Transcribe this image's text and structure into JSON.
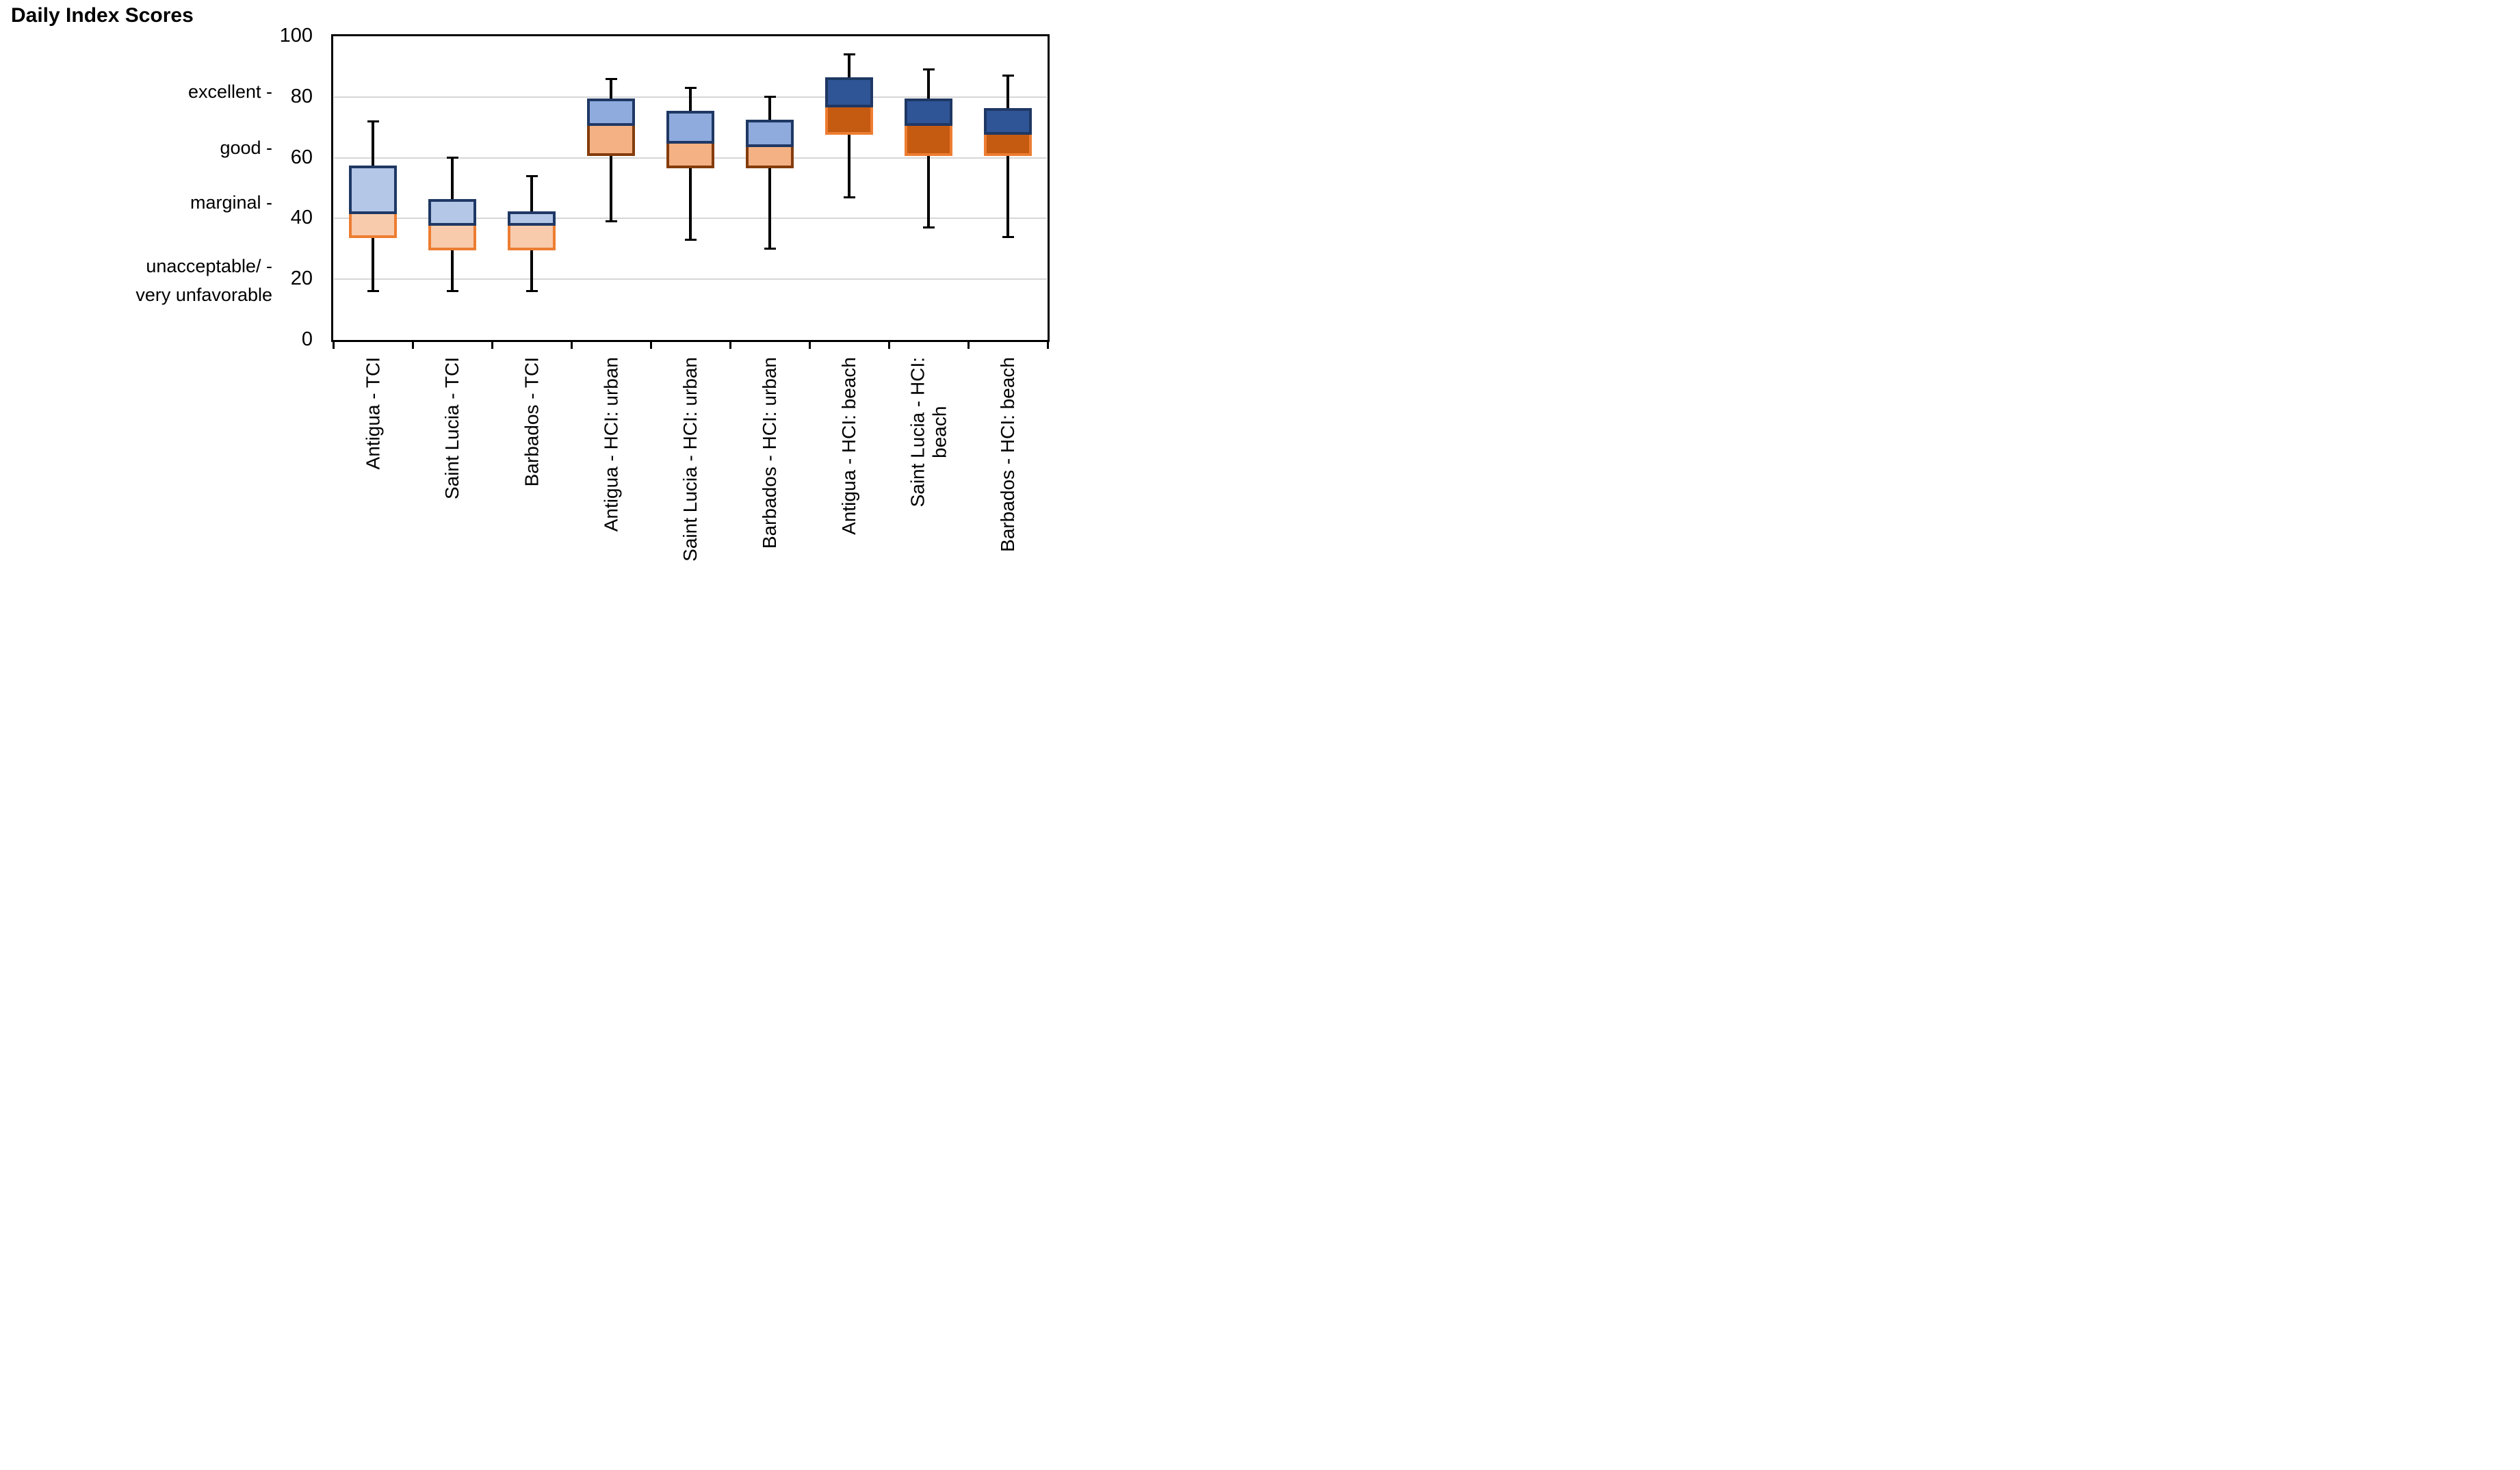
{
  "title": "Daily Index Scores",
  "y_axis": {
    "min": 0,
    "max": 100,
    "ticks": [
      {
        "label": "100",
        "value": 100
      },
      {
        "label": "80",
        "value": 80
      },
      {
        "label": "60",
        "value": 60
      },
      {
        "label": "40",
        "value": 40
      },
      {
        "label": "20",
        "value": 20
      },
      {
        "label": "0",
        "value": 0
      }
    ]
  },
  "rating_labels": [
    {
      "text": "excellent -",
      "value": 81.5
    },
    {
      "text": "good -",
      "value": 63
    },
    {
      "text": "marginal -",
      "value": 45
    },
    {
      "text": "unacceptable/ -\nvery unfavorable",
      "value": 19.4
    }
  ],
  "chart_data": {
    "type": "boxplot",
    "title": "Daily Index Scores",
    "ylabel": "",
    "xlabel": "",
    "ylim": [
      0,
      100
    ],
    "gridline_values": [
      20,
      40,
      60,
      80
    ],
    "grid_on": true,
    "legend": null,
    "categories": [
      "Antigua - TCI",
      "Saint Lucia - TCI",
      "Barbados - TCI",
      "Antigua - HCI: urban",
      "Saint Lucia - HCI: urban",
      "Barbados - HCI: urban",
      "Antigua - HCI: beach",
      "Saint Lucia - HCI: beach",
      "Barbados - HCI: beach"
    ],
    "series": [
      {
        "label": "Antigua - TCI",
        "display": "Antigua - TCI",
        "group": "TCI",
        "whisker_low": 16,
        "q1": 34,
        "median": 42,
        "q3": 57,
        "whisker_high": 72
      },
      {
        "label": "Saint Lucia - TCI",
        "display": "Saint Lucia - TCI",
        "group": "TCI",
        "whisker_low": 16,
        "q1": 30,
        "median": 38,
        "q3": 46,
        "whisker_high": 60
      },
      {
        "label": "Barbados - TCI",
        "display": "Barbados - TCI",
        "group": "TCI",
        "whisker_low": 16,
        "q1": 30,
        "median": 38,
        "q3": 42,
        "whisker_high": 54
      },
      {
        "label": "Antigua - HCI: urban",
        "display": "Antigua - HCI: urban",
        "group": "HCI_urban",
        "whisker_low": 39,
        "q1": 61,
        "median": 71,
        "q3": 79,
        "whisker_high": 86
      },
      {
        "label": "Saint Lucia - HCI: urban",
        "display": "Saint Lucia - HCI: urban",
        "group": "HCI_urban",
        "whisker_low": 33,
        "q1": 57,
        "median": 65,
        "q3": 75,
        "whisker_high": 83
      },
      {
        "label": "Barbados - HCI: urban",
        "display": "Barbados - HCI: urban",
        "group": "HCI_urban",
        "whisker_low": 30,
        "q1": 57,
        "median": 64,
        "q3": 72,
        "whisker_high": 80
      },
      {
        "label": "Antigua - HCI: beach",
        "display": "Antigua - HCI: beach",
        "group": "HCI_beach",
        "whisker_low": 47,
        "q1": 68,
        "median": 77,
        "q3": 86,
        "whisker_high": 94
      },
      {
        "label": "Saint Lucia - HCI: beach",
        "display": "Saint Lucia - HCI:\nbeach",
        "group": "HCI_beach",
        "whisker_low": 37,
        "q1": 61,
        "median": 71,
        "q3": 79,
        "whisker_high": 89
      },
      {
        "label": "Barbados - HCI: beach",
        "display": "Barbados - HCI: beach",
        "group": "HCI_beach",
        "whisker_low": 34,
        "q1": 61,
        "median": 68,
        "q3": 76,
        "whisker_high": 87
      }
    ],
    "group_colors": {
      "TCI": {
        "upper_fill": "#b4c7e7",
        "upper_border": "#1f3864",
        "lower_fill": "#f8cbad",
        "lower_border": "#ed7d31"
      },
      "HCI_urban": {
        "upper_fill": "#8faadc",
        "upper_border": "#1f3864",
        "lower_fill": "#f4b183",
        "lower_border": "#843c0c"
      },
      "HCI_beach": {
        "upper_fill": "#2f5597",
        "upper_border": "#1f3864",
        "lower_fill": "#c55a11",
        "lower_border": "#ed7d31"
      }
    },
    "frame_color": "#000000",
    "gridline_color": "#d6d6d6",
    "whisker_color": "#000000"
  }
}
